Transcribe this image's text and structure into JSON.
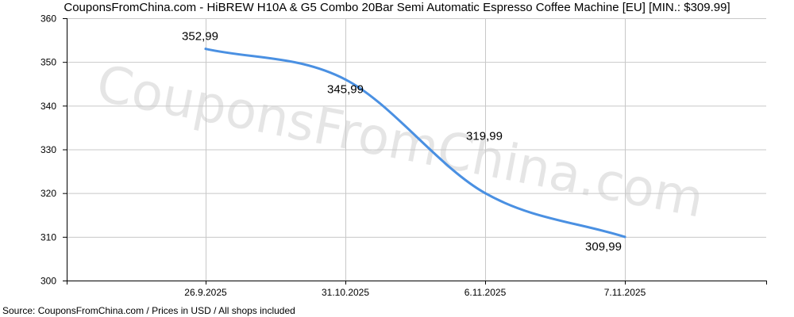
{
  "header": {
    "title": "CouponsFromChina.com - HiBREW H10A & G5 Combo 20Bar Semi Automatic Espresso Coffee Machine [EU] [MIN.: $309.99]"
  },
  "watermark": "CouponsFromChina.com",
  "footer": {
    "source": "Source: CouponsFromChina.com / Prices in USD / All shops included"
  },
  "chart_data": {
    "type": "line",
    "title": "CouponsFromChina.com - HiBREW H10A & G5 Combo 20Bar Semi Automatic Espresso Coffee Machine [EU] [MIN.: $309.99]",
    "categories": [
      "26.9.2025",
      "31.10.2025",
      "6.11.2025",
      "7.11.2025"
    ],
    "values": [
      352.99,
      345.99,
      319.99,
      309.99
    ],
    "value_labels": [
      "352,99",
      "345,99",
      "319,99",
      "309,99"
    ],
    "ylim": [
      300,
      360
    ],
    "yticks": [
      300,
      310,
      320,
      330,
      340,
      350,
      360
    ],
    "grid": true,
    "line_color": "#4a90e2",
    "legend": "none"
  }
}
